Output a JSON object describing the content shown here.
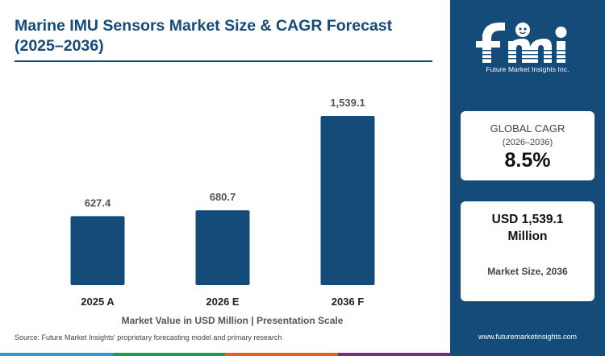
{
  "title": "Marine IMU Sensors Market Size & CAGR Forecast (2025–2036)",
  "chart_data": {
    "type": "bar",
    "categories": [
      "2025 A",
      "2026 E",
      "2036 F"
    ],
    "values": [
      627.4,
      680.7,
      1539.1
    ],
    "value_labels": [
      "627.4",
      "680.7",
      "1,539.1"
    ],
    "title": "Marine IMU Sensors Market Size & CAGR Forecast (2025–2036)",
    "xlabel": "Market Value in USD Million | Presentation Scale",
    "ylabel": "",
    "bar_color": "#154b79",
    "grid": false,
    "legend": "none"
  },
  "xlabel": "Market Value in USD Million | Presentation Scale",
  "source": "Source: Future Market Insights' proprietary forecasting model and primary research",
  "brand": {
    "logo_text": "fmi",
    "name": "Future Market Insights Inc.",
    "website": "www.futuremarketinsights.com",
    "color": "#154b79",
    "strip_colors": [
      "#2a9bd6",
      "#1f9a53",
      "#e8621b",
      "#7b2a82"
    ]
  },
  "cagr_card": {
    "label": "GLOBAL CAGR",
    "period": "(2026–2036)",
    "value": "8.5%"
  },
  "size_card": {
    "value": "USD 1,539.1 Million",
    "label": "Market Size, 2036"
  }
}
